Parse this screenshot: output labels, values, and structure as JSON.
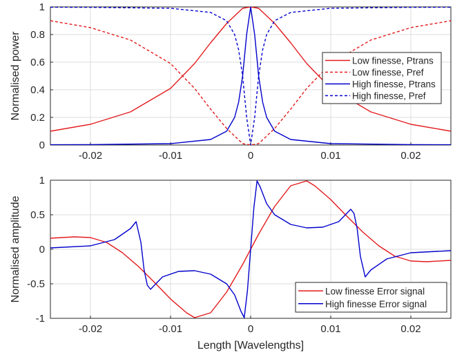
{
  "chart_data": [
    {
      "type": "line",
      "ylabel": "Normalised power",
      "xlim": [
        -0.025,
        0.025
      ],
      "ylim": [
        0,
        1
      ],
      "xticks": [
        "-0.02",
        "-0.01",
        "0",
        "0.01",
        "0.02"
      ],
      "yticks": [
        "0",
        "0.2",
        "0.4",
        "0.6",
        "0.8",
        "1"
      ],
      "grid": true,
      "legend_position": "right",
      "series": [
        {
          "name": "Low finesse, Ptrans",
          "color": "#e31a1c",
          "style": "solid",
          "x": [
            -0.025,
            -0.02,
            -0.015,
            -0.01,
            -0.007,
            -0.005,
            -0.003,
            -0.001,
            0,
            0.001,
            0.003,
            0.005,
            0.007,
            0.01,
            0.015,
            0.02,
            0.025
          ],
          "y": [
            0.1,
            0.15,
            0.24,
            0.41,
            0.59,
            0.74,
            0.88,
            0.99,
            1.0,
            0.99,
            0.88,
            0.74,
            0.59,
            0.41,
            0.24,
            0.15,
            0.1
          ]
        },
        {
          "name": "Low finesse, Pref",
          "color": "#e31a1c",
          "style": "dashed",
          "x": [
            -0.025,
            -0.02,
            -0.015,
            -0.01,
            -0.007,
            -0.005,
            -0.003,
            -0.001,
            0,
            0.001,
            0.003,
            0.005,
            0.007,
            0.01,
            0.015,
            0.02,
            0.025
          ],
          "y": [
            0.9,
            0.85,
            0.76,
            0.59,
            0.41,
            0.26,
            0.12,
            0.01,
            0.0,
            0.01,
            0.12,
            0.26,
            0.41,
            0.59,
            0.76,
            0.85,
            0.9
          ]
        },
        {
          "name": "High finesse, Ptrans",
          "color": "#0000cc",
          "style": "solid",
          "x": [
            -0.025,
            -0.02,
            -0.01,
            -0.005,
            -0.003,
            -0.002,
            -0.0015,
            -0.001,
            -0.0005,
            0,
            0.0005,
            0.001,
            0.0015,
            0.002,
            0.003,
            0.005,
            0.01,
            0.02,
            0.025
          ],
          "y": [
            0.002,
            0.003,
            0.01,
            0.04,
            0.1,
            0.2,
            0.31,
            0.5,
            0.8,
            1.0,
            0.8,
            0.5,
            0.31,
            0.2,
            0.1,
            0.04,
            0.01,
            0.003,
            0.002
          ]
        },
        {
          "name": "High finesse, Pref",
          "color": "#0000cc",
          "style": "dashed",
          "x": [
            -0.025,
            -0.02,
            -0.01,
            -0.005,
            -0.003,
            -0.002,
            -0.0015,
            -0.001,
            -0.0005,
            0,
            0.0005,
            0.001,
            0.0015,
            0.002,
            0.003,
            0.005,
            0.01,
            0.02,
            0.025
          ],
          "y": [
            0.998,
            0.997,
            0.99,
            0.96,
            0.9,
            0.8,
            0.69,
            0.5,
            0.2,
            0.0,
            0.2,
            0.5,
            0.69,
            0.8,
            0.9,
            0.96,
            0.99,
            0.997,
            0.998
          ]
        }
      ]
    },
    {
      "type": "line",
      "xlabel": "Length [Wavelengths]",
      "ylabel": "Normalised amplitude",
      "xlim": [
        -0.025,
        0.025
      ],
      "ylim": [
        -1,
        1
      ],
      "xticks": [
        "-0.02",
        "-0.01",
        "0",
        "0.01",
        "0.02"
      ],
      "yticks": [
        "-1",
        "-0.5",
        "0",
        "0.5",
        "1"
      ],
      "grid": true,
      "legend_position": "bottom-right",
      "series": [
        {
          "name": "Low finesse Error signal",
          "color": "#e31a1c",
          "style": "solid",
          "x": [
            -0.025,
            -0.022,
            -0.02,
            -0.018,
            -0.016,
            -0.014,
            -0.012,
            -0.01,
            -0.008,
            -0.007,
            -0.005,
            -0.003,
            -0.001,
            0,
            0.001,
            0.003,
            0.005,
            0.007,
            0.008,
            0.01,
            0.012,
            0.014,
            0.016,
            0.018,
            0.02,
            0.022,
            0.025
          ],
          "y": [
            0.16,
            0.18,
            0.17,
            0.1,
            -0.05,
            -0.25,
            -0.48,
            -0.72,
            -0.92,
            -0.99,
            -0.92,
            -0.62,
            -0.22,
            0.0,
            0.22,
            0.62,
            0.92,
            0.99,
            0.92,
            0.72,
            0.48,
            0.25,
            0.05,
            -0.1,
            -0.17,
            -0.18,
            -0.16
          ]
        },
        {
          "name": "High finesse Error signal",
          "color": "#0000cc",
          "style": "solid",
          "x": [
            -0.025,
            -0.02,
            -0.017,
            -0.015,
            -0.0143,
            -0.0137,
            -0.0133,
            -0.0129,
            -0.0125,
            -0.012,
            -0.011,
            -0.009,
            -0.007,
            -0.005,
            -0.003,
            -0.002,
            -0.0012,
            -0.0008,
            -0.0004,
            0,
            0.0004,
            0.0008,
            0.0012,
            0.002,
            0.003,
            0.005,
            0.007,
            0.009,
            0.011,
            0.012,
            0.0125,
            0.0129,
            0.0133,
            0.0137,
            0.0143,
            0.015,
            0.017,
            0.02,
            0.025
          ],
          "y": [
            0.02,
            0.05,
            0.14,
            0.3,
            0.4,
            0.1,
            -0.3,
            -0.52,
            -0.58,
            -0.52,
            -0.4,
            -0.32,
            -0.31,
            -0.36,
            -0.5,
            -0.66,
            -0.9,
            -0.99,
            -0.6,
            0.0,
            0.6,
            0.99,
            0.9,
            0.66,
            0.5,
            0.36,
            0.31,
            0.32,
            0.4,
            0.52,
            0.58,
            0.52,
            0.3,
            -0.1,
            -0.4,
            -0.3,
            -0.14,
            -0.05,
            -0.02
          ]
        }
      ]
    }
  ]
}
